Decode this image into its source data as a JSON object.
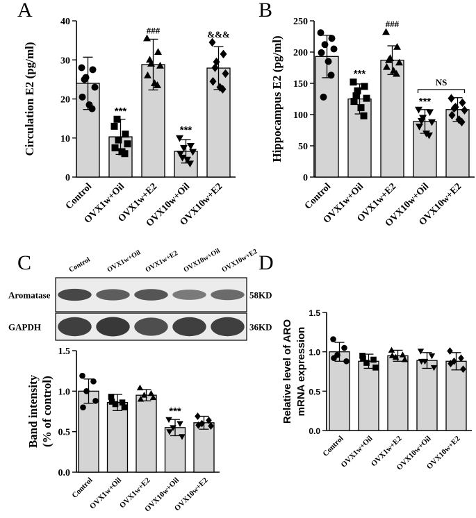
{
  "chart_data": [
    {
      "panel": "A",
      "type": "bar",
      "categories": [
        "Control",
        "OVX1w+Oil",
        "OVX1w+E2",
        "OVX10w+Oil",
        "OVX10w+E2"
      ],
      "values": [
        24,
        10.3,
        28.8,
        6.6,
        27.9
      ],
      "errors": [
        6.7,
        4.5,
        6.5,
        3.0,
        5.5
      ],
      "points": [
        [
          28,
          27.5,
          25.5,
          23,
          20.5,
          18.5,
          17.5,
          25
        ],
        [
          13,
          11,
          9.5,
          8.5,
          7.5,
          6.5,
          6,
          14.8
        ],
        [
          35.5,
          32,
          29,
          28.5,
          26,
          24,
          23.5,
          30
        ],
        [
          10,
          8,
          7.5,
          6.5,
          6,
          4.5,
          3.5,
          5
        ],
        [
          34.5,
          31.5,
          29.5,
          26.5,
          24.5,
          23,
          22.5,
          28
        ]
      ],
      "markers": [
        "circle",
        "square",
        "triangle-up",
        "triangle-down",
        "diamond"
      ],
      "sig": [
        "",
        "***",
        "###",
        "***",
        "&&&"
      ],
      "ylabel": "Circulation E2 (pg/ml)",
      "ylim": [
        0,
        40
      ],
      "yticks": [
        0,
        10,
        20,
        30,
        40
      ],
      "bar_color": "#d4d4d4"
    },
    {
      "panel": "B",
      "type": "bar",
      "categories": [
        "Control",
        "OVX1w+Oil",
        "OVX1w+E2",
        "OVX10w+Oil",
        "OVX10w+E2"
      ],
      "values": [
        193,
        125,
        187,
        89,
        108
      ],
      "errors": [
        34,
        24,
        23,
        19,
        19
      ],
      "points": [
        [
          231,
          222,
          212,
          205,
          199,
          185,
          163,
          128
        ],
        [
          152,
          145,
          138,
          126,
          121,
          111,
          98,
          130
        ],
        [
          232,
          208,
          190,
          183,
          176,
          170,
          165,
          187
        ],
        [
          108,
          104,
          95,
          88,
          81,
          70,
          67,
          90
        ],
        [
          126,
          119,
          112,
          107,
          99,
          92,
          88,
          110
        ]
      ],
      "markers": [
        "circle",
        "square",
        "triangle-up",
        "triangle-down",
        "diamond"
      ],
      "sig": [
        "",
        "***",
        "###",
        "***",
        ""
      ],
      "bracket_label": "NS",
      "ylabel": "Hippocampus E2 (pg/ml)",
      "ylim": [
        0,
        250
      ],
      "yticks": [
        0,
        50,
        100,
        150,
        200,
        250
      ],
      "bar_color": "#d4d4d4"
    },
    {
      "panel": "C",
      "type": "bar",
      "categories": [
        "Control",
        "OVX1w+Oil",
        "OVX1w+E2",
        "OVX10w+Oil",
        "OVX10w+E2"
      ],
      "values": [
        1.0,
        0.86,
        0.95,
        0.55,
        0.61
      ],
      "errors": [
        0.15,
        0.1,
        0.07,
        0.1,
        0.08
      ],
      "points": [
        [
          1.19,
          1.12,
          1.0,
          0.88,
          0.8
        ],
        [
          0.93,
          0.86,
          0.84,
          0.8,
          0.87
        ],
        [
          1.04,
          0.97,
          0.95,
          0.92,
          0.9
        ],
        [
          0.65,
          0.6,
          0.55,
          0.44,
          0.5
        ],
        [
          0.69,
          0.64,
          0.6,
          0.57,
          0.58
        ]
      ],
      "markers": [
        "circle",
        "square",
        "triangle-up",
        "triangle-down",
        "diamond"
      ],
      "sig": [
        "",
        "",
        "",
        "***",
        ""
      ],
      "ylabel_lines": [
        "Band intensity",
        "(% of control)"
      ],
      "ylim": [
        0,
        1.5
      ],
      "yticks": [
        0.0,
        0.5,
        1.0,
        1.5
      ],
      "bar_color": "#d4d4d4"
    },
    {
      "panel": "D",
      "type": "bar",
      "categories": [
        "Control",
        "OVX1w+Oil",
        "OVX1w+E2",
        "OVX10w+Oil",
        "OVX10w+E2"
      ],
      "values": [
        1.0,
        0.88,
        0.95,
        0.89,
        0.88
      ],
      "errors": [
        0.12,
        0.09,
        0.07,
        0.1,
        0.11
      ],
      "points": [
        [
          1.16,
          1.05,
          0.96,
          0.88,
          0.92
        ],
        [
          0.95,
          0.9,
          0.86,
          0.8,
          0.92
        ],
        [
          1.02,
          0.96,
          0.93,
          0.9,
          0.95
        ],
        [
          1.01,
          0.95,
          0.88,
          0.8,
          0.88
        ],
        [
          1.01,
          0.92,
          0.88,
          0.78,
          0.85
        ]
      ],
      "markers": [
        "circle",
        "square",
        "triangle-up",
        "triangle-down",
        "diamond"
      ],
      "sig": [
        "",
        "",
        "",
        "",
        ""
      ],
      "ylabel_lines": [
        "Relative level of ARO",
        "mRNA expression"
      ],
      "ylim": [
        0,
        1.5
      ],
      "yticks": [
        0.0,
        0.5,
        1.0,
        1.5
      ],
      "bar_color": "#d4d4d4"
    }
  ],
  "panel_letters": [
    "A",
    "B",
    "C",
    "D"
  ],
  "blot": {
    "lanes": [
      "Control",
      "OVX1w+Oil",
      "OVX1w+E2",
      "OVX10w+Oil",
      "OVX10w+E2"
    ],
    "rows": [
      {
        "label": "Aromatase",
        "size": "58KD",
        "intensity": [
          0.9,
          0.75,
          0.8,
          0.55,
          0.65
        ]
      },
      {
        "label": "GAPDH",
        "size": "36KD",
        "intensity": [
          0.95,
          1.0,
          0.85,
          0.95,
          0.95
        ]
      }
    ]
  }
}
